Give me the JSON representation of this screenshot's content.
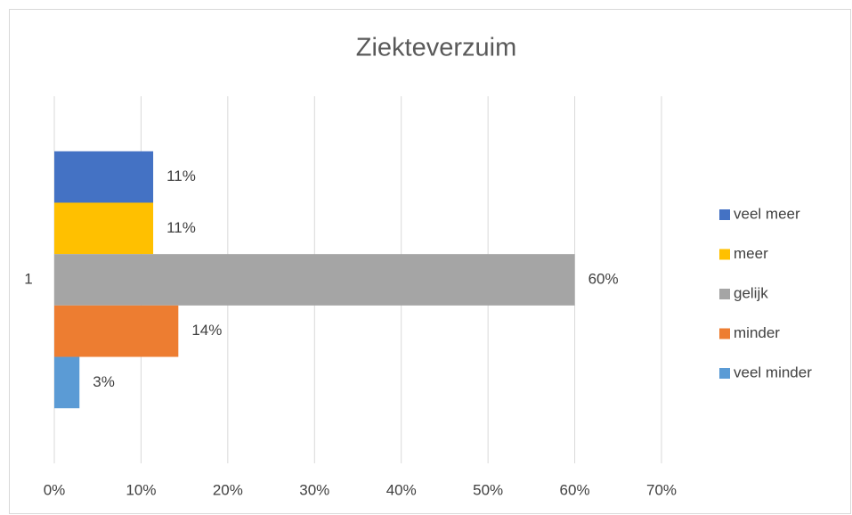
{
  "chart_data": {
    "type": "hbar",
    "title": "Ziekteverzuim",
    "categories": [
      "1"
    ],
    "series": [
      {
        "name": "veel meer",
        "color": "#4472c4",
        "values": [
          11.4
        ],
        "value_labels": [
          "11%"
        ]
      },
      {
        "name": "meer",
        "color": "#ffc000",
        "values": [
          11.4
        ],
        "value_labels": [
          "11%"
        ]
      },
      {
        "name": "gelijk",
        "color": "#a5a5a5",
        "values": [
          60
        ],
        "value_labels": [
          "60%"
        ]
      },
      {
        "name": "minder",
        "color": "#ed7d31",
        "values": [
          14.3
        ],
        "value_labels": [
          "14%"
        ]
      },
      {
        "name": "veel minder",
        "color": "#5b9bd5",
        "values": [
          2.9
        ],
        "value_labels": [
          "3%"
        ]
      }
    ],
    "xlim": [
      0,
      70
    ],
    "xticks": [
      {
        "value": 0,
        "label": "0%"
      },
      {
        "value": 10,
        "label": "10%"
      },
      {
        "value": 20,
        "label": "20%"
      },
      {
        "value": 30,
        "label": "30%"
      },
      {
        "value": 40,
        "label": "40%"
      },
      {
        "value": 50,
        "label": "50%"
      },
      {
        "value": 60,
        "label": "60%"
      },
      {
        "value": 70,
        "label": "70%"
      }
    ],
    "grid": true,
    "legend": "right"
  }
}
